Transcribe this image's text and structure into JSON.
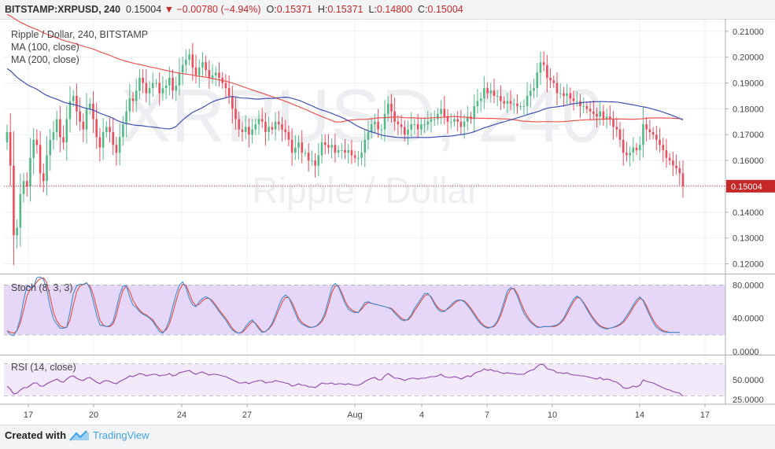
{
  "header": {
    "symbol": "BITSTAMP:XRPUSD, 240",
    "last": "0.15004",
    "arrow": "▼",
    "change": "−0.00780 (−4.94%)",
    "open_label": "O:",
    "open": "0.15371",
    "high_label": "H:",
    "high": "0.15371",
    "low_label": "L:",
    "low": "0.14800",
    "close_label": "C:",
    "close": "0.15004"
  },
  "legend": {
    "title": "Ripple / Dollar, 240, BITSTAMP",
    "ma100": "MA (100, close)",
    "ma200": "MA (200, close)",
    "stoch": "Stoch (8, 3, 3)",
    "rsi": "RSI (14, close)"
  },
  "watermark": {
    "symbol": "XRPUSD, 240",
    "name": "Ripple / Dollar"
  },
  "footer": {
    "created_with": "Created with",
    "brand": "TradingView"
  },
  "colors": {
    "up": "#53b987",
    "down": "#eb4d5c",
    "ma100": "#3f51b5",
    "ma200": "#ef5350",
    "stoch_k": "#3d8fd6",
    "stoch_d": "#e74c3c",
    "rsi": "#8e44ad",
    "last_price": "#c62828"
  },
  "chart_data": [
    {
      "type": "candlestick",
      "title": "Ripple / Dollar, 240, BITSTAMP",
      "x_ticks": [
        "17",
        "20",
        "24",
        "27",
        "Aug",
        "4",
        "7",
        "10",
        "14",
        "17"
      ],
      "y_ticks": [
        "0.21000",
        "0.20000",
        "0.19000",
        "0.18000",
        "0.17000",
        "0.16000",
        "0.15000",
        "0.14000",
        "0.13000",
        "0.12000"
      ],
      "ylim": [
        0.1165,
        0.2145
      ],
      "last_price": "0.15004",
      "closes": [
        0.171,
        0.158,
        0.131,
        0.134,
        0.147,
        0.152,
        0.15,
        0.161,
        0.168,
        0.166,
        0.155,
        0.152,
        0.162,
        0.168,
        0.171,
        0.176,
        0.169,
        0.167,
        0.176,
        0.183,
        0.185,
        0.179,
        0.175,
        0.172,
        0.18,
        0.182,
        0.176,
        0.169,
        0.165,
        0.171,
        0.173,
        0.171,
        0.166,
        0.163,
        0.169,
        0.174,
        0.179,
        0.184,
        0.183,
        0.187,
        0.192,
        0.19,
        0.186,
        0.188,
        0.19,
        0.19,
        0.186,
        0.188,
        0.189,
        0.192,
        0.187,
        0.189,
        0.194,
        0.197,
        0.199,
        0.201,
        0.196,
        0.193,
        0.196,
        0.198,
        0.195,
        0.192,
        0.193,
        0.194,
        0.192,
        0.19,
        0.188,
        0.185,
        0.18,
        0.176,
        0.172,
        0.171,
        0.173,
        0.17,
        0.172,
        0.174,
        0.176,
        0.175,
        0.171,
        0.173,
        0.172,
        0.175,
        0.174,
        0.172,
        0.171,
        0.168,
        0.163,
        0.165,
        0.167,
        0.163,
        0.163,
        0.16,
        0.16,
        0.158,
        0.162,
        0.167,
        0.166,
        0.165,
        0.166,
        0.163,
        0.164,
        0.164,
        0.163,
        0.164,
        0.162,
        0.161,
        0.161,
        0.163,
        0.168,
        0.171,
        0.174,
        0.175,
        0.172,
        0.172,
        0.178,
        0.182,
        0.179,
        0.175,
        0.174,
        0.173,
        0.17,
        0.172,
        0.174,
        0.174,
        0.172,
        0.174,
        0.174,
        0.175,
        0.176,
        0.176,
        0.178,
        0.18,
        0.177,
        0.175,
        0.175,
        0.176,
        0.175,
        0.173,
        0.175,
        0.177,
        0.176,
        0.181,
        0.183,
        0.184,
        0.188,
        0.186,
        0.187,
        0.185,
        0.185,
        0.183,
        0.182,
        0.183,
        0.182,
        0.182,
        0.181,
        0.181,
        0.181,
        0.185,
        0.187,
        0.188,
        0.194,
        0.198,
        0.197,
        0.192,
        0.191,
        0.19,
        0.186,
        0.186,
        0.185,
        0.186,
        0.184,
        0.183,
        0.183,
        0.181,
        0.181,
        0.18,
        0.179,
        0.178,
        0.177,
        0.179,
        0.176,
        0.177,
        0.176,
        0.173,
        0.172,
        0.168,
        0.163,
        0.162,
        0.163,
        0.165,
        0.164,
        0.166,
        0.174,
        0.172,
        0.171,
        0.17,
        0.168,
        0.166,
        0.164,
        0.161,
        0.16,
        0.158,
        0.157,
        0.155,
        0.15
      ],
      "series": [
        {
          "name": "MA (100, close)"
        },
        {
          "name": "MA (200, close)"
        }
      ]
    },
    {
      "type": "line",
      "title": "Stoch (8, 3, 3)",
      "y_ticks": [
        "80.0000",
        "40.0000",
        "0.0000"
      ],
      "ylim": [
        -3,
        92
      ],
      "bands": [
        20,
        80
      ],
      "series": [
        {
          "name": "%K",
          "values": [
            25,
            20,
            19,
            26,
            40,
            62,
            79,
            77,
            78,
            89,
            90,
            87,
            75,
            54,
            39,
            33,
            28,
            28,
            29,
            48,
            70,
            79,
            81,
            81,
            83,
            76,
            61,
            44,
            32,
            31,
            30,
            31,
            36,
            52,
            69,
            79,
            79,
            66,
            56,
            53,
            48,
            45,
            43,
            40,
            36,
            30,
            24,
            22,
            28,
            38,
            54,
            69,
            80,
            84,
            77,
            64,
            56,
            54,
            60,
            64,
            66,
            64,
            59,
            54,
            48,
            43,
            38,
            31,
            26,
            23,
            22,
            24,
            30,
            35,
            38,
            33,
            27,
            23,
            24,
            28,
            34,
            44,
            55,
            64,
            68,
            65,
            56,
            46,
            37,
            33,
            31,
            29,
            29,
            30,
            33,
            38,
            47,
            62,
            77,
            82,
            78,
            68,
            58,
            51,
            48,
            47,
            47,
            53,
            59,
            60,
            58,
            57,
            56,
            55,
            54,
            53,
            51,
            46,
            42,
            38,
            37,
            39,
            44,
            52,
            58,
            64,
            70,
            70,
            65,
            57,
            51,
            48,
            48,
            52,
            56,
            60,
            62,
            62,
            60,
            55,
            50,
            44,
            38,
            33,
            30,
            28,
            29,
            31,
            37,
            47,
            60,
            73,
            77,
            75,
            67,
            56,
            46,
            40,
            35,
            32,
            29,
            29,
            30,
            30,
            30,
            31,
            32,
            35,
            40,
            48,
            56,
            63,
            67,
            64,
            58,
            51,
            44,
            38,
            33,
            30,
            28,
            27,
            28,
            29,
            31,
            33,
            37,
            43,
            49,
            56,
            62,
            66,
            61,
            52,
            43,
            35,
            29,
            26,
            24,
            23,
            23,
            23,
            23,
            23
          ]
        },
        {
          "name": "%D",
          "values": [
            25,
            23,
            22,
            25,
            34,
            50,
            67,
            75,
            78,
            84,
            88,
            89,
            83,
            66,
            47,
            37,
            31,
            29,
            29,
            38,
            56,
            72,
            79,
            81,
            82,
            79,
            69,
            53,
            38,
            32,
            30,
            30,
            33,
            44,
            61,
            74,
            79,
            73,
            62,
            55,
            50,
            46,
            44,
            41,
            38,
            32,
            27,
            23,
            26,
            33,
            46,
            61,
            74,
            81,
            80,
            70,
            60,
            55,
            57,
            61,
            64,
            64,
            61,
            56,
            50,
            45,
            40,
            34,
            28,
            24,
            22,
            23,
            27,
            32,
            36,
            34,
            29,
            24,
            24,
            27,
            32,
            40,
            50,
            59,
            65,
            65,
            59,
            50,
            40,
            35,
            32,
            30,
            29,
            30,
            32,
            36,
            43,
            56,
            71,
            79,
            79,
            71,
            61,
            54,
            50,
            48,
            47,
            51,
            56,
            59,
            58,
            57,
            56,
            55,
            54,
            53,
            52,
            48,
            44,
            40,
            38,
            38,
            42,
            49,
            55,
            61,
            67,
            69,
            66,
            59,
            53,
            50,
            49,
            51,
            54,
            58,
            61,
            62,
            61,
            57,
            52,
            46,
            40,
            35,
            31,
            29,
            29,
            30,
            35,
            43,
            55,
            68,
            75,
            76,
            70,
            60,
            50,
            43,
            37,
            33,
            30,
            29,
            30,
            30,
            30,
            30,
            31,
            34,
            38,
            45,
            53,
            60,
            65,
            64,
            59,
            53,
            46,
            40,
            35,
            31,
            29,
            28,
            28,
            29,
            30,
            32,
            35,
            40,
            46,
            53,
            59,
            64,
            62,
            55,
            46,
            38,
            32,
            28,
            25,
            24,
            23,
            23,
            23,
            23
          ]
        }
      ]
    },
    {
      "type": "line",
      "title": "RSI (14, close)",
      "y_ticks": [
        "50.0000",
        "25.0000"
      ],
      "ylim": [
        20,
        80
      ],
      "bands": [
        30,
        70
      ],
      "series": [
        {
          "name": "RSI (14, close)",
          "values": [
            42,
            38,
            32,
            33,
            37,
            40,
            40,
            43,
            46,
            46,
            42,
            42,
            45,
            47,
            49,
            51,
            48,
            47,
            51,
            54,
            55,
            52,
            50,
            49,
            52,
            53,
            50,
            47,
            45,
            48,
            49,
            48,
            46,
            45,
            48,
            50,
            52,
            55,
            54,
            56,
            58,
            57,
            55,
            56,
            57,
            57,
            55,
            56,
            56,
            58,
            55,
            56,
            59,
            60,
            61,
            62,
            59,
            57,
            59,
            60,
            58,
            56,
            57,
            57,
            56,
            55,
            54,
            52,
            50,
            48,
            46,
            46,
            47,
            45,
            47,
            48,
            49,
            49,
            46,
            47,
            47,
            49,
            48,
            47,
            46,
            45,
            42,
            43,
            45,
            43,
            43,
            41,
            41,
            40,
            43,
            46,
            45,
            45,
            46,
            44,
            45,
            45,
            44,
            45,
            44,
            43,
            43,
            45,
            48,
            50,
            52,
            53,
            50,
            50,
            55,
            58,
            55,
            52,
            52,
            51,
            49,
            51,
            52,
            52,
            51,
            52,
            52,
            53,
            54,
            54,
            55,
            57,
            54,
            53,
            53,
            54,
            53,
            51,
            53,
            55,
            54,
            58,
            60,
            61,
            64,
            62,
            63,
            61,
            61,
            59,
            58,
            59,
            58,
            58,
            57,
            57,
            57,
            60,
            62,
            63,
            67,
            70,
            69,
            64,
            63,
            62,
            59,
            59,
            58,
            59,
            57,
            56,
            56,
            55,
            55,
            54,
            53,
            52,
            51,
            53,
            50,
            51,
            50,
            48,
            47,
            44,
            40,
            39,
            40,
            42,
            41,
            43,
            50,
            48,
            47,
            46,
            44,
            42,
            40,
            38,
            37,
            35,
            34,
            33,
            29
          ]
        }
      ]
    }
  ]
}
